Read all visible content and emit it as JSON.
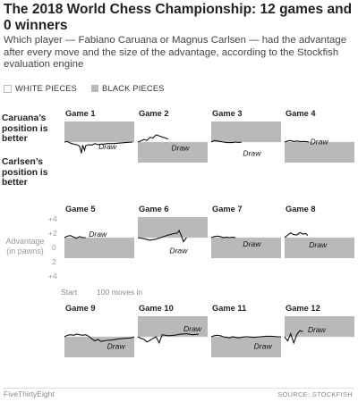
{
  "title": "The 2018 World Chess Championship: 12 games and 0 winners",
  "subtitle": "Which player — Fabiano Caruana or Magnus Carlsen — had the advantage after every move and the size of the advantage, according to the Stockfish evaluation engine",
  "legend": {
    "white": "WHITE PIECES",
    "black": "BLACK PIECES"
  },
  "side_labels": {
    "top": "Caruana’s position is better",
    "bottom": "Carlsen’s position is better"
  },
  "axis": {
    "title": "Advantage (in pawns)",
    "ticks": [
      "+4",
      "+2",
      "0",
      "2",
      "+4"
    ],
    "x_start": "Start",
    "x_end": "100 moves in"
  },
  "colors": {
    "black_pieces_fill": "#b9b9b9",
    "white_pieces_fill": "#ffffff",
    "eval_line": "#111111"
  },
  "chart_data": {
    "type": "line",
    "y_unit": "pawns",
    "ylim": [
      -4,
      4
    ],
    "xlim": [
      0,
      100
    ],
    "shading": "Caruana’s piece color per game: white on top half, black pieces shaded gray",
    "games": [
      {
        "name": "Game 1",
        "caruana_color": "black",
        "result": "Draw",
        "x": [
          0,
          5,
          10,
          15,
          20,
          25,
          28,
          30,
          33,
          35,
          40,
          45,
          50,
          55,
          60,
          65,
          70,
          75,
          80,
          90,
          100,
          112
        ],
        "y": [
          0,
          0.1,
          -0.2,
          -0.4,
          -0.5,
          -0.8,
          -2.2,
          -0.6,
          -1.6,
          -0.7,
          -0.5,
          -0.6,
          -0.3,
          -0.5,
          -0.4,
          -0.4,
          -0.3,
          -0.3,
          -0.3,
          -0.2,
          -0.1,
          0
        ]
      },
      {
        "name": "Game 2",
        "caruana_color": "white",
        "result": "Draw",
        "x": [
          0,
          5,
          10,
          15,
          20,
          25,
          30,
          35,
          40,
          45,
          50
        ],
        "y": [
          0,
          0.2,
          0.5,
          0.3,
          0.9,
          0.8,
          1.4,
          1.2,
          1.0,
          0.8,
          0.6
        ]
      },
      {
        "name": "Game 3",
        "caruana_color": "black",
        "result": "Draw",
        "x": [
          0,
          5,
          10,
          15,
          20,
          25,
          30,
          35,
          40,
          45,
          50
        ],
        "y": [
          0,
          0.3,
          0.2,
          0.1,
          0.0,
          -0.1,
          -0.1,
          -0.1,
          0.0,
          -0.1,
          0.0
        ]
      },
      {
        "name": "Game 4",
        "caruana_color": "white",
        "result": "Draw",
        "x": [
          0,
          5,
          10,
          15,
          20,
          25,
          30,
          35,
          40
        ],
        "y": [
          0,
          0.2,
          0.3,
          0.1,
          0.2,
          0.1,
          0.1,
          0.1,
          0.0
        ]
      },
      {
        "name": "Game 5",
        "caruana_color": "white",
        "result": "Draw",
        "x": [
          0,
          5,
          10,
          15,
          20,
          25,
          30,
          35
        ],
        "y": [
          0,
          0.3,
          0.4,
          0.1,
          -0.1,
          0.2,
          0.0,
          0.0
        ]
      },
      {
        "name": "Game 6",
        "caruana_color": "black",
        "result": "Draw",
        "x": [
          0,
          10,
          20,
          30,
          40,
          50,
          60,
          65,
          68,
          72,
          75,
          80
        ],
        "y": [
          0,
          -0.2,
          -0.5,
          -0.3,
          0.1,
          0.5,
          0.8,
          0.9,
          1.4,
          0.2,
          -0.8,
          0.0
        ]
      },
      {
        "name": "Game 7",
        "caruana_color": "white",
        "result": "Draw",
        "x": [
          0,
          5,
          10,
          15,
          20,
          25,
          30,
          35,
          40
        ],
        "y": [
          0,
          0.2,
          0.3,
          0.2,
          0.0,
          0.1,
          0.0,
          0.1,
          0.0
        ]
      },
      {
        "name": "Game 8",
        "caruana_color": "white",
        "result": "Draw",
        "x": [
          0,
          5,
          10,
          15,
          20,
          25,
          30,
          35,
          38
        ],
        "y": [
          0,
          0.5,
          0.9,
          0.6,
          0.5,
          1.0,
          0.7,
          0.8,
          0.4
        ]
      },
      {
        "name": "Game 9",
        "caruana_color": "white",
        "result": "Draw",
        "x": [
          0,
          5,
          10,
          15,
          20,
          25,
          30,
          35,
          40,
          45,
          50,
          55,
          60,
          70,
          80,
          90,
          100,
          110,
          115
        ],
        "y": [
          0,
          0.3,
          0.4,
          0.3,
          0.5,
          0.4,
          0.3,
          0.4,
          0.1,
          -0.4,
          -0.8,
          -0.5,
          -0.9,
          -0.7,
          -0.6,
          -0.4,
          -0.3,
          -0.2,
          0.0
        ]
      },
      {
        "name": "Game 10",
        "caruana_color": "black",
        "result": "Draw",
        "x": [
          0,
          5,
          10,
          15,
          20,
          25,
          30,
          35,
          40,
          50,
          60,
          70,
          80,
          90,
          100
        ],
        "y": [
          0,
          -0.3,
          -0.5,
          -1.0,
          -0.7,
          -0.3,
          0.0,
          -1.2,
          0.4,
          0.2,
          0.3,
          0.5,
          0.6,
          0.4,
          0.5
        ]
      },
      {
        "name": "Game 11",
        "caruana_color": "white",
        "result": "Draw",
        "x": [
          0,
          5,
          10,
          15,
          20,
          25,
          30,
          35,
          40,
          45,
          50,
          55,
          60,
          70,
          80,
          90,
          100,
          110,
          115
        ],
        "y": [
          0,
          0.2,
          0.3,
          0.2,
          0.0,
          -0.1,
          -0.2,
          0.0,
          -0.1,
          -0.2,
          -0.1,
          0.0,
          0.0,
          -0.1,
          0.0,
          0.1,
          0.1,
          0.0,
          0.0
        ]
      },
      {
        "name": "Game 12",
        "caruana_color": "black",
        "result": "Draw",
        "x": [
          0,
          5,
          10,
          15,
          20,
          25,
          30
        ],
        "y": [
          0,
          -0.8,
          0.6,
          -1.2,
          0.4,
          1.2,
          1.0
        ]
      }
    ]
  },
  "footer": {
    "left": "FiveThirtyEight",
    "right": "SOURCE: STOCKFISH"
  }
}
